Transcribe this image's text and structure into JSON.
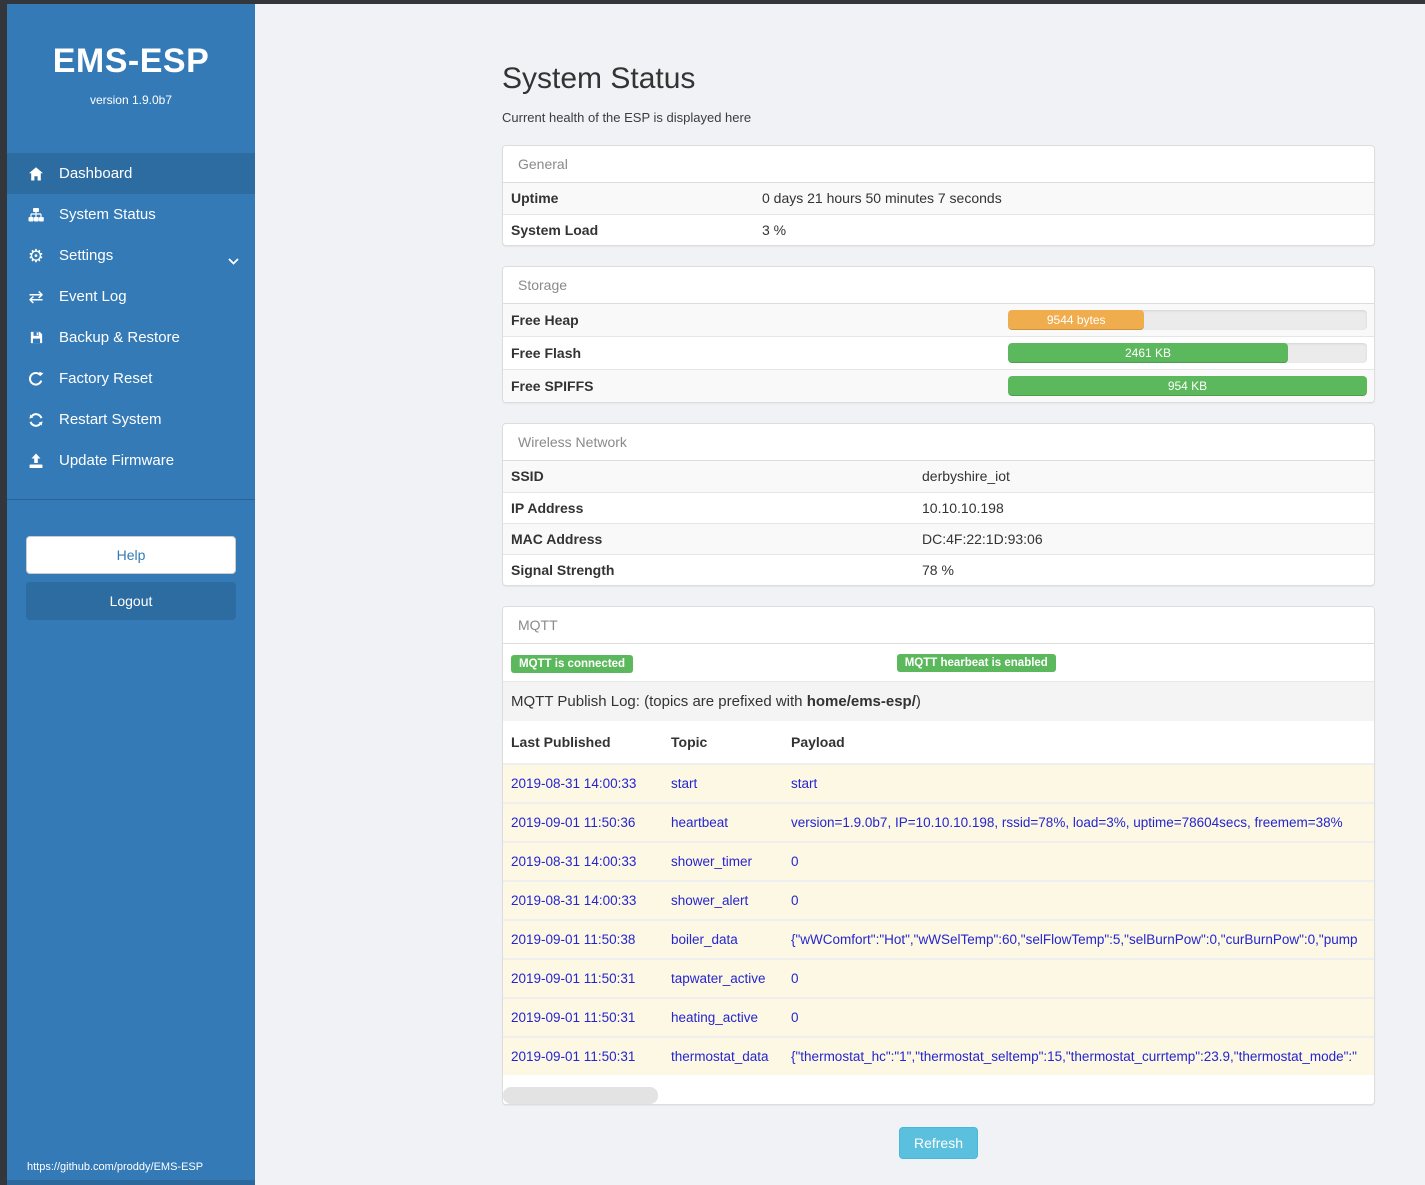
{
  "app": {
    "title": "EMS-ESP",
    "version": "version 1.9.0b7",
    "footer_link": "https://github.com/proddy/EMS-ESP"
  },
  "icons": {
    "gear": "⚙",
    "exchange": "⇄"
  },
  "sidebar": {
    "nav": [
      {
        "label": "Dashboard",
        "icon": "home-icon",
        "active": true
      },
      {
        "label": "System Status",
        "icon": "sitemap-icon",
        "active": false
      },
      {
        "label": "Settings",
        "icon": "gear-icon",
        "active": false,
        "has_submenu": true
      },
      {
        "label": "Event Log",
        "icon": "exchange-icon",
        "active": false
      },
      {
        "label": "Backup & Restore",
        "icon": "floppy-icon",
        "active": false
      },
      {
        "label": "Factory Reset",
        "icon": "refresh-icon",
        "active": false
      },
      {
        "label": "Restart System",
        "icon": "sync-icon",
        "active": false
      },
      {
        "label": "Update Firmware",
        "icon": "upload-icon",
        "active": false
      }
    ],
    "help_label": "Help",
    "logout_label": "Logout"
  },
  "page": {
    "title": "System Status",
    "subtitle": "Current health of the ESP is displayed here",
    "refresh_label": "Refresh"
  },
  "general": {
    "header": "General",
    "rows": [
      {
        "label": "Uptime",
        "value": "0 days 21 hours 50 minutes 7 seconds"
      },
      {
        "label": "System Load",
        "value": "3 %"
      }
    ]
  },
  "storage": {
    "header": "Storage",
    "rows": [
      {
        "label": "Free Heap",
        "bar_label": "9544 bytes",
        "percent": 38,
        "color": "#f0ad4e"
      },
      {
        "label": "Free Flash",
        "bar_label": "2461 KB",
        "percent": 78,
        "color": "#5cb85c"
      },
      {
        "label": "Free SPIFFS",
        "bar_label": "954 KB",
        "percent": 100,
        "color": "#5cb85c"
      }
    ]
  },
  "wireless": {
    "header": "Wireless Network",
    "rows": [
      {
        "label": "SSID",
        "value": "derbyshire_iot"
      },
      {
        "label": "IP Address",
        "value": "10.10.10.198"
      },
      {
        "label": "MAC Address",
        "value": "DC:4F:22:1D:93:06"
      },
      {
        "label": "Signal Strength",
        "value": "78 %"
      }
    ]
  },
  "mqtt": {
    "header": "MQTT",
    "badges": [
      "MQTT is connected",
      "MQTT hearbeat is enabled"
    ],
    "publish_log": {
      "prefix": "MQTT Publish Log: (topics are prefixed with ",
      "bold": "home/ems-esp/",
      "suffix": ")"
    },
    "columns": [
      "Last Published",
      "Topic",
      "Payload"
    ],
    "log": [
      {
        "time": "2019-08-31 14:00:33",
        "topic": "start",
        "payload": "start"
      },
      {
        "time": "2019-09-01 11:50:36",
        "topic": "heartbeat",
        "payload": "version=1.9.0b7, IP=10.10.10.198, rssid=78%, load=3%, uptime=78604secs, freemem=38%"
      },
      {
        "time": "2019-08-31 14:00:33",
        "topic": "shower_timer",
        "payload": "0"
      },
      {
        "time": "2019-08-31 14:00:33",
        "topic": "shower_alert",
        "payload": "0"
      },
      {
        "time": "2019-09-01 11:50:38",
        "topic": "boiler_data",
        "payload": "{\"wWComfort\":\"Hot\",\"wWSelTemp\":60,\"selFlowTemp\":5,\"selBurnPow\":0,\"curBurnPow\":0,\"pump"
      },
      {
        "time": "2019-09-01 11:50:31",
        "topic": "tapwater_active",
        "payload": "0"
      },
      {
        "time": "2019-09-01 11:50:31",
        "topic": "heating_active",
        "payload": "0"
      },
      {
        "time": "2019-09-01 11:50:31",
        "topic": "thermostat_data",
        "payload": "{\"thermostat_hc\":\"1\",\"thermostat_seltemp\":15,\"thermostat_currtemp\":23.9,\"thermostat_mode\":\""
      }
    ]
  },
  "colors": {
    "sidebar_blue": "#337ab7",
    "sidebar_active": "#2d6ca0",
    "frame_dark": "#33373b",
    "success_green": "#5cb85c",
    "warning_orange": "#f0ad4e",
    "info_blue": "#5bc0de",
    "log_text_blue": "#2525d0",
    "log_row_bg": "#fcf8e3"
  }
}
